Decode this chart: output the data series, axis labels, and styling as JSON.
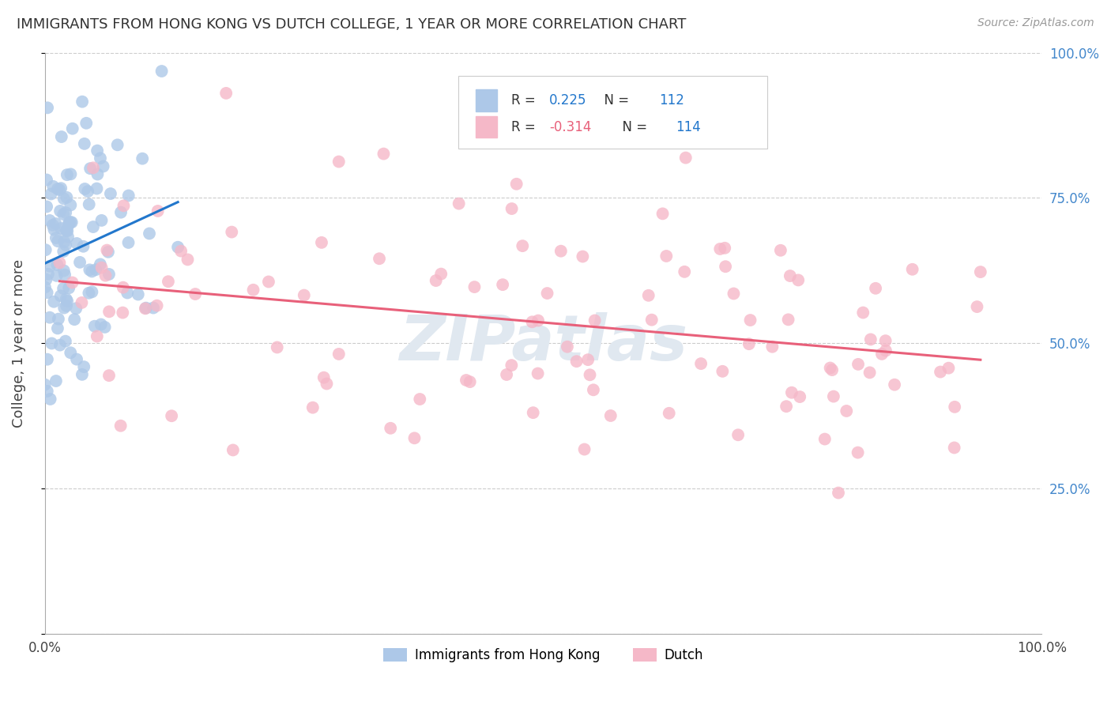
{
  "title": "IMMIGRANTS FROM HONG KONG VS DUTCH COLLEGE, 1 YEAR OR MORE CORRELATION CHART",
  "source": "Source: ZipAtlas.com",
  "ylabel": "College, 1 year or more",
  "xlim": [
    0.0,
    1.0
  ],
  "ylim": [
    0.0,
    1.0
  ],
  "blue_R": 0.225,
  "blue_N": 112,
  "pink_R": -0.314,
  "pink_N": 114,
  "blue_color": "#adc8e8",
  "pink_color": "#f5b8c8",
  "blue_line_color": "#2277cc",
  "pink_line_color": "#e8607a",
  "legend_blue_label": "Immigrants from Hong Kong",
  "legend_pink_label": "Dutch",
  "watermark": "ZIPatlas",
  "grid_color": "#cccccc",
  "ytick_color": "#4488cc",
  "right_ytick_labels": [
    "100.0%",
    "75.0%",
    "50.0%",
    "25.0%"
  ],
  "right_ytick_positions": [
    1.0,
    0.75,
    0.5,
    0.25
  ]
}
